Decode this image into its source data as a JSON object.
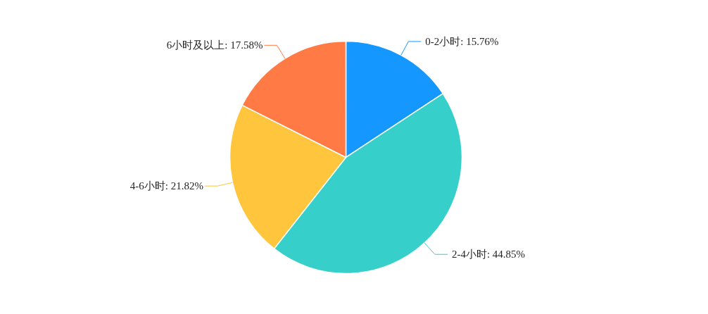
{
  "chart_data": {
    "type": "pie",
    "categories": [
      "0-2小时",
      "2-4小时",
      "4-6小时",
      "6小时及以上"
    ],
    "values": [
      15.76,
      44.85,
      21.82,
      17.58
    ],
    "colors": [
      "#1497ff",
      "#36cfc9",
      "#ffc53d",
      "#ff7a45"
    ],
    "value_labels": [
      ": 15.76%",
      ": 44.85%",
      ": 21.82%",
      ": 17.58%"
    ],
    "legend": false
  }
}
